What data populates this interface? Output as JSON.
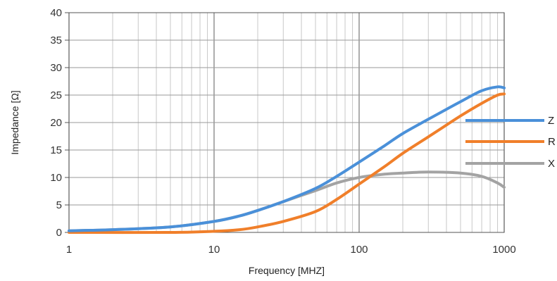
{
  "chart_data": {
    "type": "line",
    "title": "",
    "xlabel": "Frequency [MHZ]",
    "ylabel": "Impedance [Ω]",
    "xscale": "log",
    "xlim": [
      1,
      1000
    ],
    "ylim": [
      0,
      40
    ],
    "x_ticks": [
      "1",
      "10",
      "100",
      "1000"
    ],
    "y_ticks": [
      "0",
      "5",
      "10",
      "15",
      "20",
      "25",
      "30",
      "35",
      "40"
    ],
    "grid": true,
    "legend_position": "right",
    "series": [
      {
        "name": "Z",
        "color": "#4a90d9",
        "x": [
          1,
          2,
          5,
          10,
          15,
          20,
          30,
          50,
          70,
          100,
          150,
          200,
          300,
          500,
          700,
          900,
          1000
        ],
        "y": [
          0.3,
          0.5,
          1.0,
          2.0,
          3.0,
          4.0,
          5.6,
          8.0,
          10.2,
          12.8,
          15.8,
          18.0,
          20.6,
          23.8,
          25.8,
          26.5,
          26.3
        ]
      },
      {
        "name": "R",
        "color": "#f07f2a",
        "x": [
          1,
          5,
          10,
          15,
          20,
          30,
          50,
          70,
          100,
          150,
          200,
          300,
          500,
          700,
          900,
          1000
        ],
        "y": [
          0.0,
          0.0,
          0.2,
          0.5,
          1.0,
          2.0,
          3.8,
          6.0,
          8.8,
          12.0,
          14.4,
          17.4,
          21.2,
          23.5,
          25.0,
          25.2
        ]
      },
      {
        "name": "X",
        "color": "#a3a3a3",
        "x": [
          1,
          2,
          5,
          10,
          15,
          20,
          30,
          50,
          70,
          100,
          150,
          200,
          300,
          500,
          700,
          900,
          1000
        ],
        "y": [
          0.3,
          0.5,
          1.0,
          2.0,
          3.0,
          4.0,
          5.6,
          7.6,
          9.0,
          10.0,
          10.6,
          10.8,
          11.0,
          10.8,
          10.2,
          9.0,
          8.2
        ]
      }
    ]
  }
}
